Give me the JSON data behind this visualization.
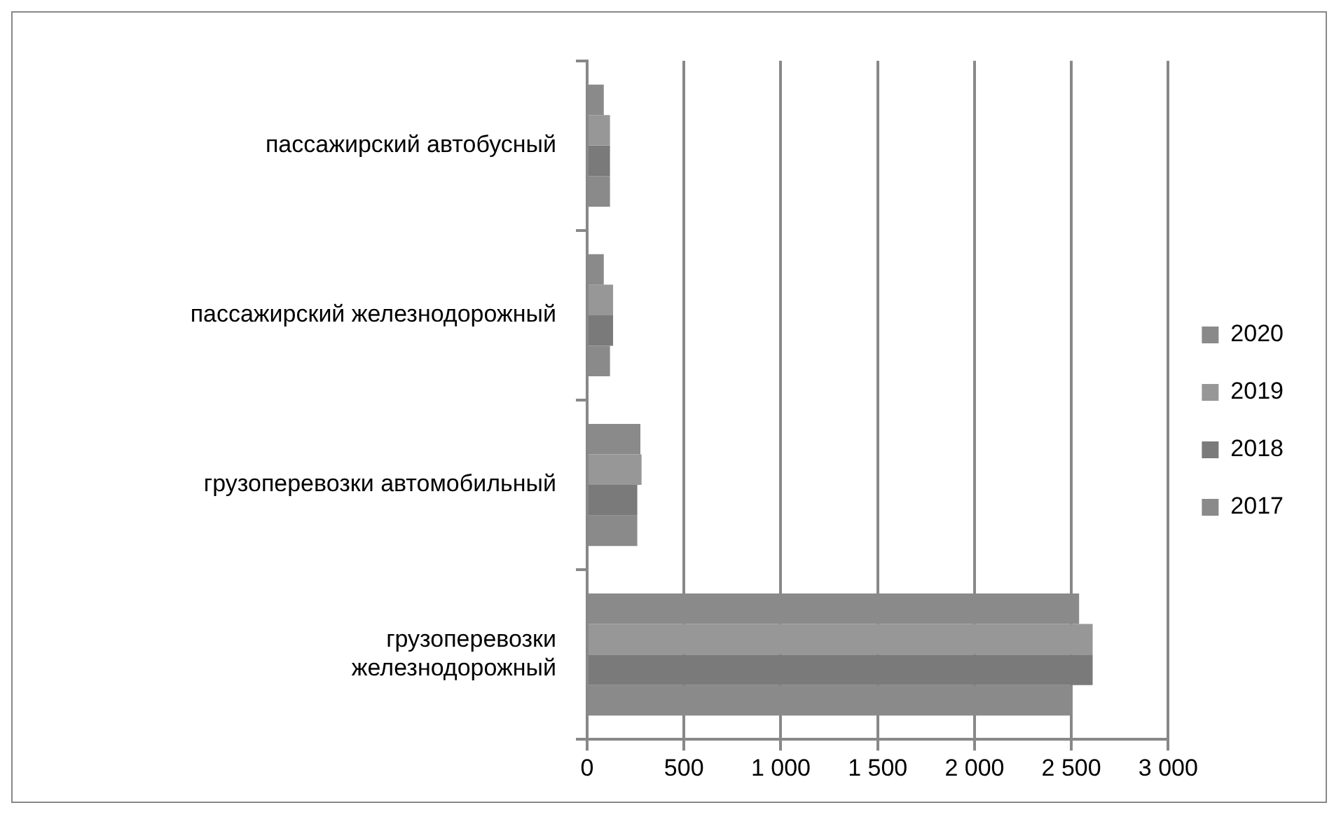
{
  "chart_data": {
    "type": "bar",
    "orientation": "horizontal",
    "categories": [
      "пассажирский автобусный",
      "пассажирский железнодорожный",
      "грузоперевозки автомобильный",
      "грузоперевозки железнодорожный"
    ],
    "series": [
      {
        "name": "2020",
        "color": "#8a8a8a",
        "values": [
          86,
          86,
          275,
          2540
        ]
      },
      {
        "name": "2019",
        "color": "#979797",
        "values": [
          118,
          134,
          281,
          2610
        ]
      },
      {
        "name": "2018",
        "color": "#7a7a7a",
        "values": [
          118,
          134,
          259,
          2610
        ]
      },
      {
        "name": "2017",
        "color": "#8a8a8a",
        "values": [
          118,
          118,
          259,
          2505
        ]
      }
    ],
    "xlim": [
      0,
      3000
    ],
    "xticks": [
      0,
      500,
      {
        "value": 1000,
        "label": "1 000"
      },
      {
        "value": 1500,
        "label": "1 500"
      },
      {
        "value": 2000,
        "label": "2 000"
      },
      {
        "value": 2500,
        "label": "2 500"
      },
      {
        "value": 3000,
        "label": "3 000"
      }
    ],
    "grid": "x",
    "legend": "right"
  }
}
